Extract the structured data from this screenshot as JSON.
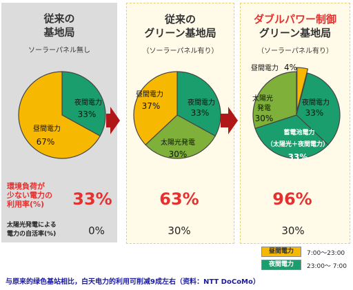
{
  "colors": {
    "daytime": "#f6b800",
    "nighttime": "#1a9e6e",
    "solar": "#7fb03a",
    "red": "#e53030",
    "arrow": "#b01818"
  },
  "panels": [
    {
      "title_line1": "従来の",
      "title_line2": "基地局",
      "subtitle": "ソーラーパネル無し",
      "load_share": "33%",
      "solar_self_rate": "0%"
    },
    {
      "title_line1": "従来の",
      "title_line2": "グリーン基地局",
      "subtitle": "（ソーラーパネル有り）",
      "load_share": "63%",
      "solar_self_rate": "30%"
    },
    {
      "title_line0": "ダブルパワー制御",
      "title_line2": "グリーン基地局",
      "subtitle": "（ソーラーパネル有り）",
      "load_share": "96%",
      "solar_self_rate": "30%"
    }
  ],
  "row_labels": {
    "load_line1": "環境負荷が",
    "load_line2": "少ない電力の",
    "load_line3": "利用率(%)",
    "solar_line1": "太陽光発電による",
    "solar_line2": "電力の自活率(%)"
  },
  "chart_data": [
    {
      "type": "pie",
      "slices": [
        {
          "label": "夜間電力",
          "value": 33
        },
        {
          "label": "昼間電力",
          "value": 67
        }
      ]
    },
    {
      "type": "pie",
      "slices": [
        {
          "label": "夜間電力",
          "value": 33
        },
        {
          "label": "太陽光発電",
          "value": 30
        },
        {
          "label": "昼間電力",
          "value": 37
        }
      ]
    },
    {
      "type": "pie",
      "slices": [
        {
          "label": "昼間電力",
          "value": 4
        },
        {
          "label": "夜間電力",
          "value": 33
        },
        {
          "label": "蓄電池電力（太陽光＋夜間電力）",
          "value": 33
        },
        {
          "label": "太陽光発電",
          "value": 30
        }
      ]
    }
  ],
  "pie_text": {
    "p1_night": "夜間電力",
    "p1_night_v": "33%",
    "p1_day": "昼間電力",
    "p1_day_v": "67%",
    "p2_day": "昼間電力",
    "p2_day_v": "37%",
    "p2_night": "夜間電力",
    "p2_night_v": "33%",
    "p2_solar": "太陽光発電",
    "p2_solar_v": "30%",
    "p3_day": "昼間電力",
    "p3_day_v": "4%",
    "p3_solar1": "太陽",
    "p3_solar_sfx": "光",
    "p3_solar2": "発電",
    "p3_solar_v": "30%",
    "p3_night": "夜間電力",
    "p3_night_v": "33%",
    "p3_batt1": "蓄電池電力",
    "p3_batt2": "（太陽光＋夜間電力）",
    "p3_batt_v": "33%"
  },
  "legend": [
    {
      "label": "昼間電力",
      "time": "7:00〜23:00"
    },
    {
      "label": "夜間電力",
      "time": "23:00〜 7:00"
    }
  ],
  "caption": "与原来的绿色基站相比，白天电力的利用可削减9成左右（资料：NTT DoCoMo）"
}
